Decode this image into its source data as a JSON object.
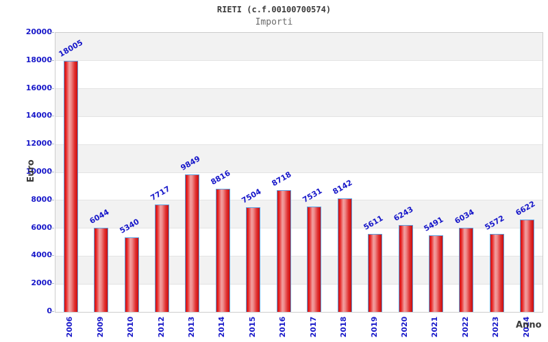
{
  "header": {
    "title": "RIETI (c.f.00100700574)",
    "subtitle": "Importi"
  },
  "axes": {
    "y_title": "Euro",
    "x_title": "Anno"
  },
  "colors": {
    "label_blue": "#1717c9",
    "bar_red": "#e01b1b",
    "bar_red_light": "#f2a0a0",
    "bar_border_blue": "#5b9fe0",
    "band_gray": "#f2f2f2",
    "band_white": "#ffffff",
    "gridline": "#e3e3e3",
    "plot_border": "#cccccc",
    "title_gray": "#3a3a3a",
    "subtitle_gray": "#6a6a6a"
  },
  "chart_data": {
    "type": "bar",
    "title": "RIETI (c.f.00100700574)",
    "subtitle": "Importi",
    "xlabel": "Anno",
    "ylabel": "Euro",
    "categories": [
      "2006",
      "2009",
      "2010",
      "2012",
      "2013",
      "2014",
      "2015",
      "2016",
      "2017",
      "2018",
      "2019",
      "2020",
      "2021",
      "2022",
      "2023",
      "2024"
    ],
    "values": [
      18005,
      6044,
      5340,
      7717,
      9849,
      8816,
      7504,
      8718,
      7531,
      8142,
      5611,
      6243,
      5491,
      6034,
      5572,
      6622
    ],
    "ylim": [
      0,
      20000
    ],
    "ytick_step": 2000,
    "yticks": [
      0,
      2000,
      4000,
      6000,
      8000,
      10000,
      12000,
      14000,
      16000,
      18000,
      20000
    ],
    "grid": "horizontal-bands",
    "legend": "none",
    "bar_value_labels_rotation_deg": -30,
    "xtick_labels_rotation_deg": -90
  }
}
